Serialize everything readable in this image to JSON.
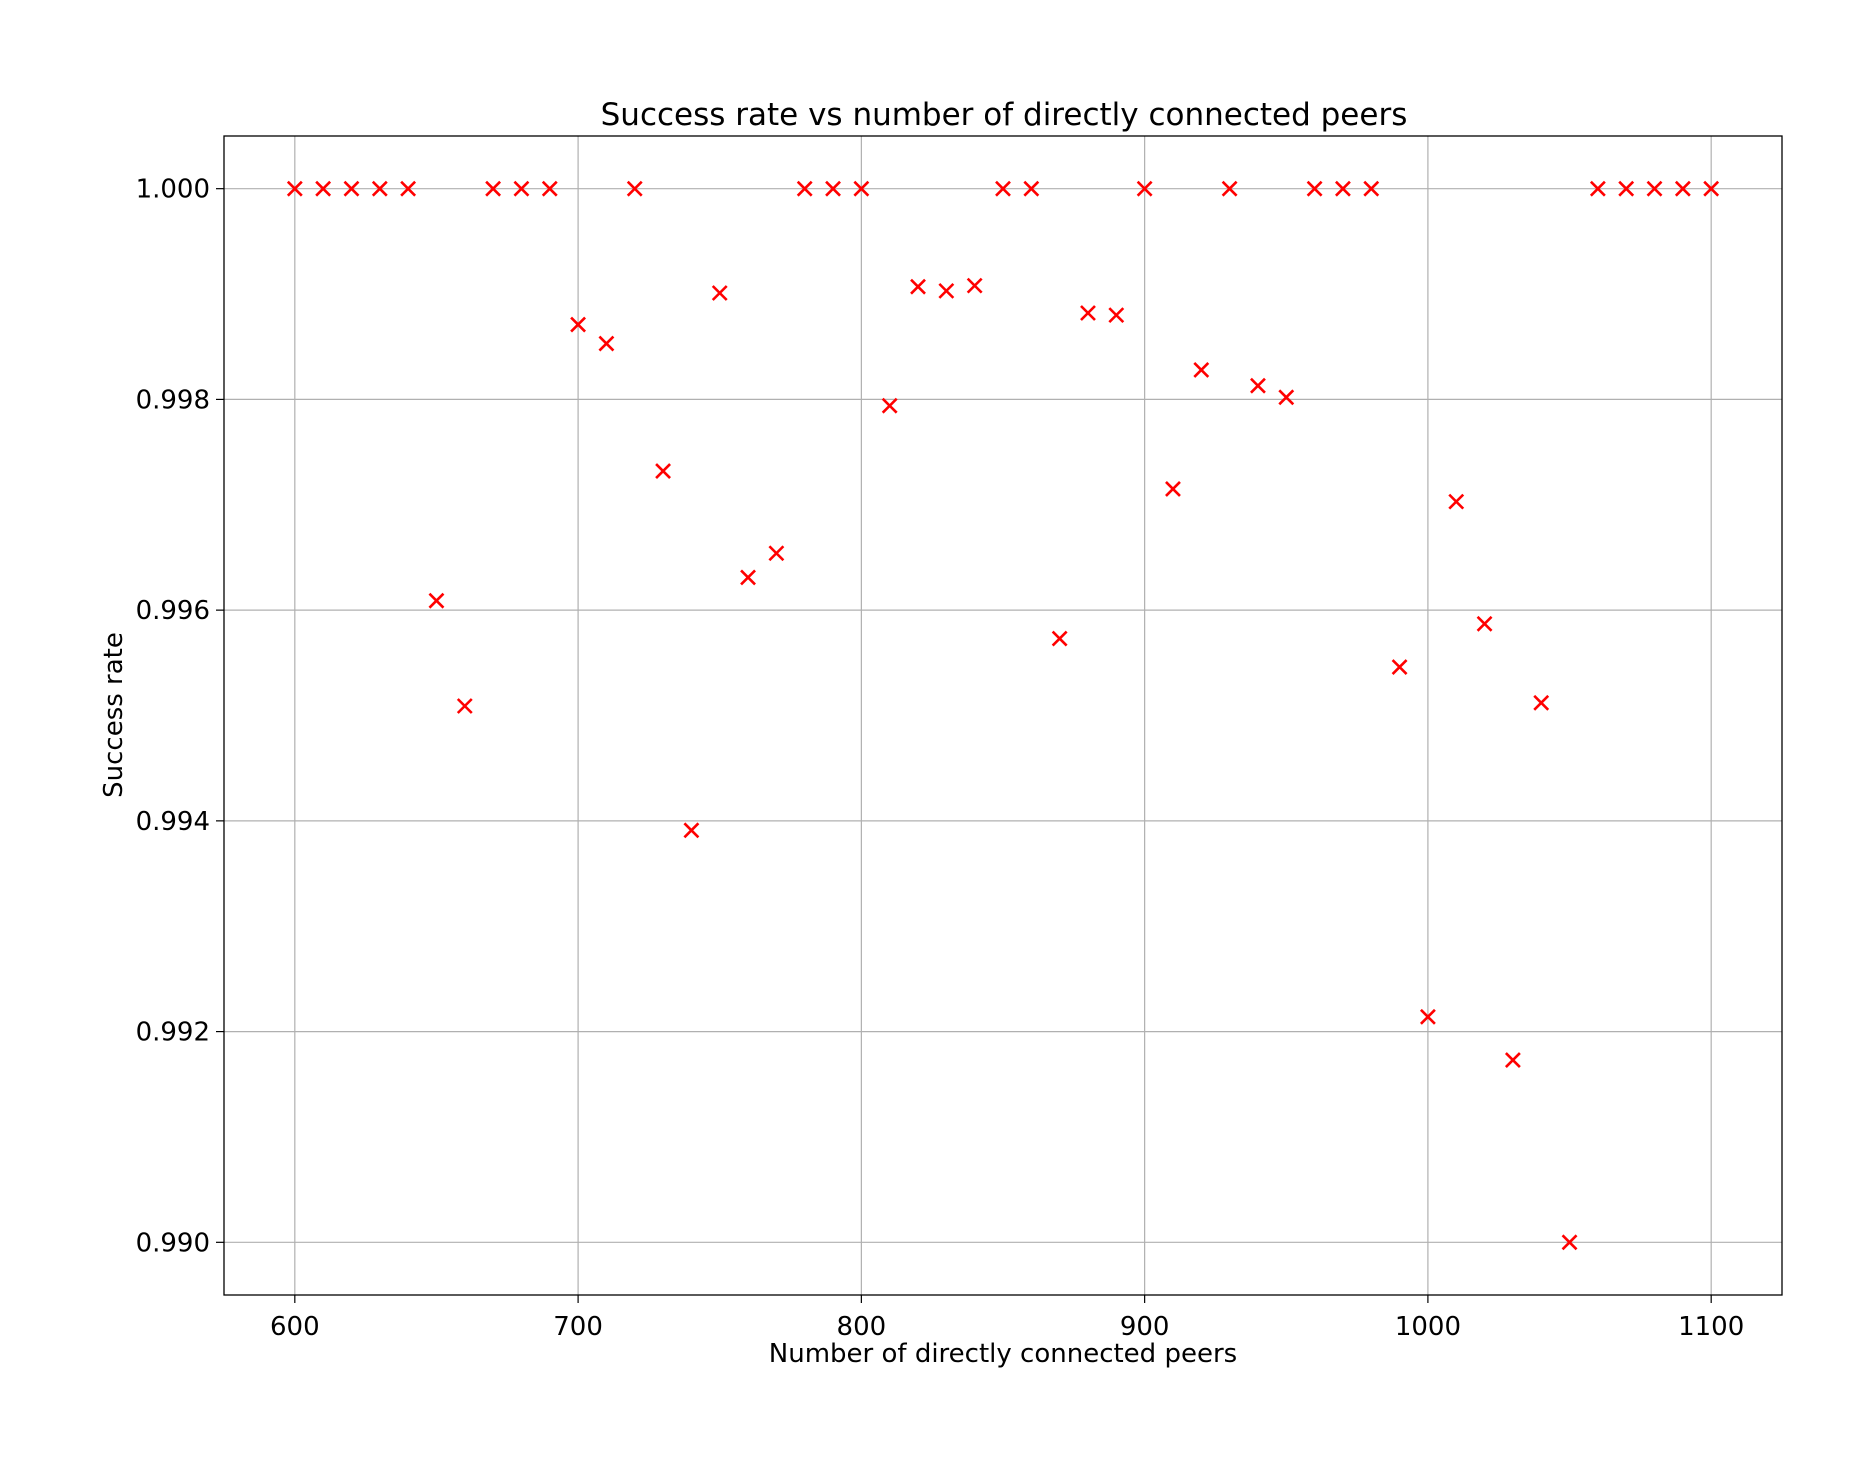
{
  "chart_data": {
    "type": "scatter",
    "title": "Success rate vs number of directly connected peers",
    "xlabel": "Number of directly connected peers",
    "ylabel": "Success rate",
    "xlim": [
      575,
      1125
    ],
    "ylim": [
      0.9895,
      1.0005
    ],
    "x_ticks": [
      600,
      700,
      800,
      900,
      1000,
      1100
    ],
    "x_tick_labels": [
      "600",
      "700",
      "800",
      "900",
      "1000",
      "1100"
    ],
    "y_ticks": [
      0.99,
      0.992,
      0.994,
      0.996,
      0.998,
      1.0
    ],
    "y_tick_labels": [
      "0.990",
      "0.992",
      "0.994",
      "0.996",
      "0.998",
      "1.000"
    ],
    "grid": true,
    "marker": "x",
    "marker_color": "#ff0000",
    "points": [
      {
        "x": 600,
        "y": 1.0
      },
      {
        "x": 610,
        "y": 1.0
      },
      {
        "x": 620,
        "y": 1.0
      },
      {
        "x": 630,
        "y": 1.0
      },
      {
        "x": 640,
        "y": 1.0
      },
      {
        "x": 650,
        "y": 0.99609
      },
      {
        "x": 660,
        "y": 0.99509
      },
      {
        "x": 670,
        "y": 1.0
      },
      {
        "x": 680,
        "y": 1.0
      },
      {
        "x": 690,
        "y": 1.0
      },
      {
        "x": 700,
        "y": 0.99871
      },
      {
        "x": 710,
        "y": 0.99853
      },
      {
        "x": 720,
        "y": 1.0
      },
      {
        "x": 730,
        "y": 0.99732
      },
      {
        "x": 740,
        "y": 0.99391
      },
      {
        "x": 750,
        "y": 0.99901
      },
      {
        "x": 760,
        "y": 0.99631
      },
      {
        "x": 770,
        "y": 0.99654
      },
      {
        "x": 780,
        "y": 1.0
      },
      {
        "x": 790,
        "y": 1.0
      },
      {
        "x": 800,
        "y": 1.0
      },
      {
        "x": 810,
        "y": 0.99794
      },
      {
        "x": 820,
        "y": 0.99907
      },
      {
        "x": 830,
        "y": 0.99903
      },
      {
        "x": 840,
        "y": 0.99908
      },
      {
        "x": 850,
        "y": 1.0
      },
      {
        "x": 860,
        "y": 1.0
      },
      {
        "x": 870,
        "y": 0.99573
      },
      {
        "x": 880,
        "y": 0.99882
      },
      {
        "x": 890,
        "y": 0.9988
      },
      {
        "x": 900,
        "y": 1.0
      },
      {
        "x": 910,
        "y": 0.99715
      },
      {
        "x": 920,
        "y": 0.99828
      },
      {
        "x": 930,
        "y": 1.0
      },
      {
        "x": 940,
        "y": 0.99813
      },
      {
        "x": 950,
        "y": 0.99802
      },
      {
        "x": 960,
        "y": 1.0
      },
      {
        "x": 970,
        "y": 1.0
      },
      {
        "x": 980,
        "y": 1.0
      },
      {
        "x": 990,
        "y": 0.99546
      },
      {
        "x": 1000,
        "y": 0.99214
      },
      {
        "x": 1010,
        "y": 0.99703
      },
      {
        "x": 1020,
        "y": 0.99587
      },
      {
        "x": 1030,
        "y": 0.99173
      },
      {
        "x": 1040,
        "y": 0.99512
      },
      {
        "x": 1050,
        "y": 0.99
      },
      {
        "x": 1060,
        "y": 1.0
      },
      {
        "x": 1070,
        "y": 1.0
      },
      {
        "x": 1080,
        "y": 1.0
      },
      {
        "x": 1090,
        "y": 1.0
      },
      {
        "x": 1100,
        "y": 1.0
      }
    ]
  }
}
